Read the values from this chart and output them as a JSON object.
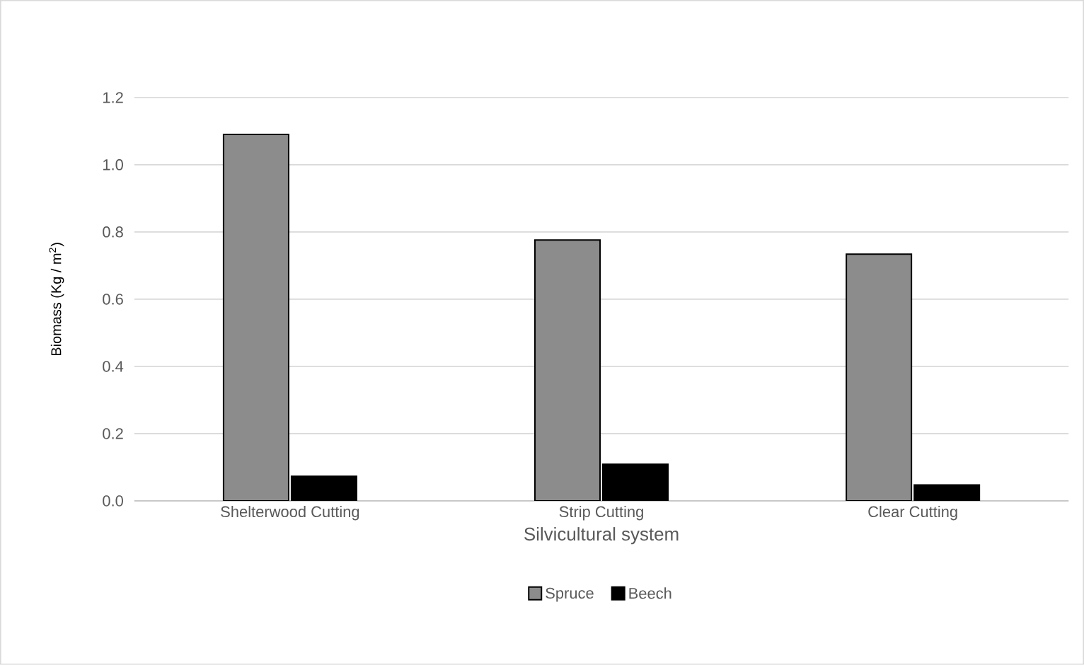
{
  "chart_data": {
    "type": "bar",
    "xlabel": "Silvicultural system",
    "ylabel": "Biomass (Kg / m$^{2}$)",
    "categories": [
      "Shelterwood Cutting",
      "Strip Cutting",
      "Clear Cutting"
    ],
    "series": [
      {
        "name": "Spruce",
        "color": "#8c8c8c",
        "values": [
          1.09,
          0.776,
          0.734
        ]
      },
      {
        "name": "Beech",
        "color": "#000000",
        "values": [
          0.073,
          0.109,
          0.047
        ]
      }
    ],
    "ylim": [
      0,
      1.2
    ],
    "yticks": [
      {
        "value": 0,
        "label": "0.0"
      },
      0.2,
      0.4,
      0.6,
      0.8,
      {
        "value": 1.0,
        "label": "1.0"
      },
      1.2
    ],
    "grid": "y",
    "legend": "bottom"
  }
}
